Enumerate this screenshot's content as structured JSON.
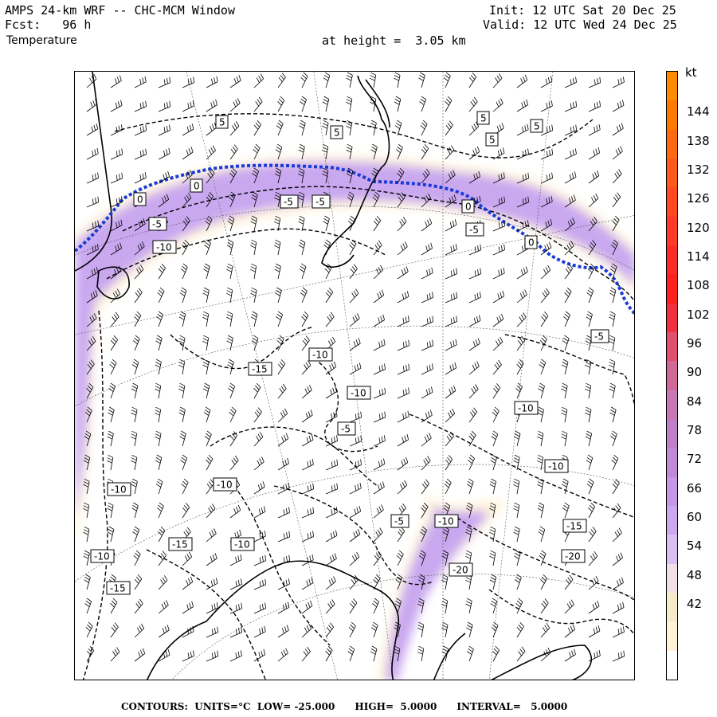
{
  "header": {
    "model_title": "AMPS 24-km WRF -- CHC-MCM Window",
    "forecast": "Fcst:   96 h",
    "field": "Temperature",
    "init": "Init: 12 UTC Sat 20 Dec 25",
    "valid": "Valid: 12 UTC Wed 24 Dec 25",
    "height": "at height =  3.05 km"
  },
  "colorbar": {
    "units": "kt",
    "labels": [
      "144",
      "138",
      "132",
      "126",
      "120",
      "114",
      "108",
      "102",
      "96",
      "90",
      "84",
      "78",
      "72",
      "66",
      "60",
      "54",
      "48",
      "42"
    ],
    "colors": [
      "#ff8c00",
      "#ff7a00",
      "#ff6a10",
      "#ff5a1a",
      "#ff4a20",
      "#ff3a28",
      "#ff2a2a",
      "#ff2020",
      "#f03040",
      "#e05070",
      "#d06898",
      "#c878b4",
      "#c080c8",
      "#c08ad6",
      "#c498e6",
      "#cca8ee",
      "#d8c0f0",
      "#f0e0e8",
      "#f4ecc8",
      "#fff4d8",
      "#ffffff"
    ]
  },
  "contour_labels": [
    "5",
    "5",
    "5",
    "5",
    "5",
    "0",
    "0",
    "0",
    "0",
    "-5",
    "-5",
    "-5",
    "-5",
    "-10",
    "-10",
    "-15",
    "-10",
    "-5",
    "-10",
    "-10",
    "-10",
    "-10",
    "-15",
    "-10",
    "-5",
    "-10",
    "-15",
    "-20",
    "-20",
    "-10",
    "-15",
    "-5"
  ],
  "footer": "CONTOURS:  UNITS=°C  LOW= -25.000      HIGH=  5.0000      INTERVAL=   5.0000"
}
